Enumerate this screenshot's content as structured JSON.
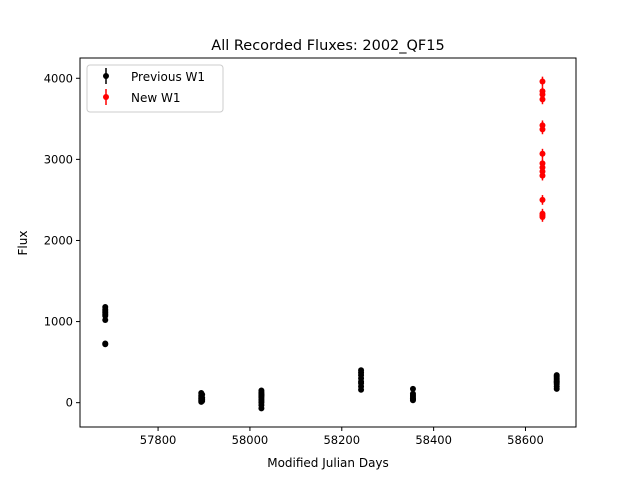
{
  "chart_data": {
    "type": "scatter",
    "title": "All Recorded Fluxes: 2002_QF15",
    "xlabel": "Modified Julian Days",
    "ylabel": "Flux",
    "xlim": [
      57630,
      58710
    ],
    "ylim": [
      -300,
      4250
    ],
    "xticks": [
      57800,
      58000,
      58200,
      58400,
      58600
    ],
    "yticks": [
      0,
      1000,
      2000,
      3000,
      4000
    ],
    "grid": false,
    "legend": {
      "placement": "top-left"
    },
    "series": [
      {
        "name": "Previous W1",
        "color": "#000000",
        "x": [
          57685,
          57685,
          57685,
          57685,
          57685,
          57685,
          57685,
          57685,
          57685,
          57894,
          57894,
          57894,
          57894,
          57894,
          57894,
          57896,
          57896,
          57896,
          57896,
          58025,
          58025,
          58025,
          58025,
          58025,
          58025,
          58025,
          58025,
          58025,
          58025,
          58025,
          58025,
          58242,
          58242,
          58242,
          58242,
          58242,
          58242,
          58242,
          58242,
          58355,
          58355,
          58355,
          58355,
          58355,
          58355,
          58355,
          58668,
          58668,
          58668,
          58668,
          58668,
          58668,
          58668,
          58668,
          58668
        ],
        "y": [
          1180,
          1150,
          1130,
          1110,
          1090,
          1070,
          1020,
          730,
          720,
          120,
          90,
          70,
          50,
          30,
          10,
          100,
          60,
          40,
          20,
          150,
          130,
          110,
          100,
          90,
          80,
          60,
          40,
          20,
          0,
          -30,
          -70,
          400,
          370,
          340,
          300,
          260,
          240,
          200,
          160,
          170,
          110,
          90,
          70,
          50,
          40,
          30,
          340,
          320,
          300,
          280,
          260,
          250,
          230,
          200,
          170
        ],
        "yerr": 20
      },
      {
        "name": "New W1",
        "color": "#ff0000",
        "x": [
          58637,
          58637,
          58637,
          58637,
          58637,
          58637,
          58637,
          58637,
          58637,
          58637,
          58637,
          58637,
          58637,
          58637,
          58637
        ],
        "y": [
          3960,
          3840,
          3800,
          3740,
          3420,
          3370,
          3070,
          2950,
          2900,
          2800,
          2500,
          2330,
          2310,
          2290,
          2850
        ],
        "yerr": 60
      }
    ]
  }
}
